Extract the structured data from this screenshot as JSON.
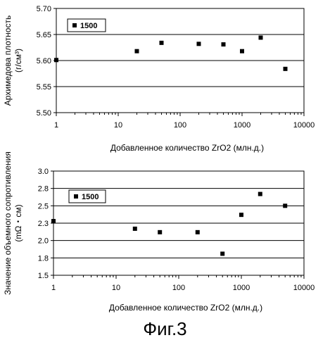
{
  "figure_caption": "Фиг.3",
  "chart_data": [
    {
      "type": "scatter",
      "title": "",
      "xlabel": "Добавленное количество ZrO2 (млн.д.)",
      "ylabel_line1": "Архимедова плотность",
      "ylabel_line2": "(г/см³)",
      "xscale": "log",
      "xlim": [
        1,
        10000
      ],
      "ylim": [
        5.5,
        5.7
      ],
      "xticks": [
        1,
        10,
        100,
        1000,
        10000
      ],
      "xtick_labels": [
        "1",
        "10",
        "100",
        "1000",
        "10000"
      ],
      "yticks": [
        5.5,
        5.55,
        5.6,
        5.65,
        5.7
      ],
      "ytick_labels": [
        "5.50",
        "5.55",
        "5.60",
        "5.65",
        "5.70"
      ],
      "grid": "horizontal",
      "legend_position": "top-left",
      "series": [
        {
          "name": "1500",
          "marker": "square",
          "color": "#000000",
          "x": [
            1,
            20,
            50,
            200,
            500,
            1000,
            2000,
            5000
          ],
          "y": [
            5.601,
            5.618,
            5.634,
            5.632,
            5.631,
            5.618,
            5.644,
            5.584
          ]
        }
      ]
    },
    {
      "type": "scatter",
      "title": "",
      "xlabel": "Добавленное количество ZrO2 (млн.д.)",
      "ylabel_line1": "Значение объемного сопротивления",
      "ylabel_line2": "(mΩ・см)",
      "xscale": "log",
      "xlim": [
        1,
        10000
      ],
      "ylim": [
        1.5,
        3.0
      ],
      "xticks": [
        1,
        10,
        100,
        1000,
        10000
      ],
      "xtick_labels": [
        "1",
        "10",
        "100",
        "1000",
        "10000"
      ],
      "yticks": [
        1.5,
        1.75,
        2.0,
        2.25,
        2.5,
        2.75,
        3.0
      ],
      "ytick_labels": [
        "1.5",
        "1.8",
        "2.0",
        "2.3",
        "2.5",
        "2.8",
        "3.0"
      ],
      "grid": "horizontal",
      "legend_position": "top-left",
      "series": [
        {
          "name": "1500",
          "marker": "square",
          "color": "#000000",
          "x": [
            1,
            20,
            50,
            200,
            500,
            1000,
            2000,
            5000
          ],
          "y": [
            2.28,
            2.17,
            2.12,
            2.12,
            1.81,
            2.37,
            2.67,
            2.5
          ]
        }
      ]
    }
  ]
}
